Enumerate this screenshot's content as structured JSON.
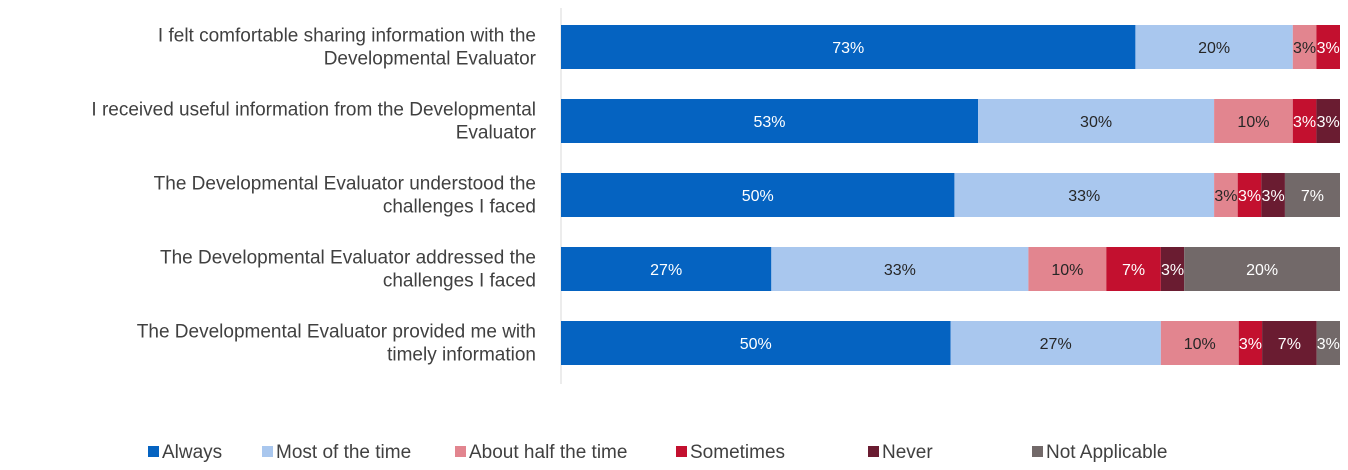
{
  "chart_data": {
    "type": "bar",
    "orientation": "horizontal",
    "stacked": true,
    "categories": [
      [
        "I felt comfortable sharing information with the",
        "Developmental Evaluator"
      ],
      [
        "I received useful information from the Developmental",
        "Evaluator"
      ],
      [
        "The Developmental Evaluator understood the",
        "challenges I faced"
      ],
      [
        "The Developmental Evaluator addressed the",
        "challenges I faced"
      ],
      [
        "The Developmental Evaluator provided me with",
        "timely information"
      ]
    ],
    "series": [
      {
        "name": "Always",
        "color": "#0563C1",
        "values": [
          73,
          53,
          50,
          27,
          50
        ],
        "labels": [
          "73%",
          "53%",
          "50%",
          "27%",
          "50%"
        ]
      },
      {
        "name": "Most of the time",
        "color": "#A9C7EE",
        "values": [
          20,
          30,
          33,
          33,
          27
        ],
        "labels": [
          "20%",
          "30%",
          "33%",
          "33%",
          "27%"
        ]
      },
      {
        "name": "About half the time",
        "color": "#E2858F",
        "values": [
          3,
          10,
          3,
          10,
          10
        ],
        "labels": [
          "3%",
          "10%",
          "3%",
          "10%",
          "10%"
        ]
      },
      {
        "name": "Sometimes",
        "color": "#C3102F",
        "values": [
          3,
          3,
          3,
          7,
          3
        ],
        "labels": [
          "3%",
          "3%",
          "3%",
          "7%",
          "3%"
        ]
      },
      {
        "name": "Never",
        "color": "#6A1C31",
        "values": [
          0,
          3,
          3,
          3,
          7
        ],
        "labels": [
          "",
          "3%",
          "3%",
          "3%",
          "7%"
        ]
      },
      {
        "name": "Not Applicable",
        "color": "#726969",
        "values": [
          0,
          0,
          7,
          20,
          3
        ],
        "labels": [
          "",
          "",
          "7%",
          "20%",
          "3%"
        ]
      }
    ],
    "label_colors": [
      "#ffffff",
      "#262626",
      "#262626",
      "#ffffff",
      "#ffffff",
      "#ffffff"
    ],
    "legend_position": "bottom",
    "grid": false
  }
}
